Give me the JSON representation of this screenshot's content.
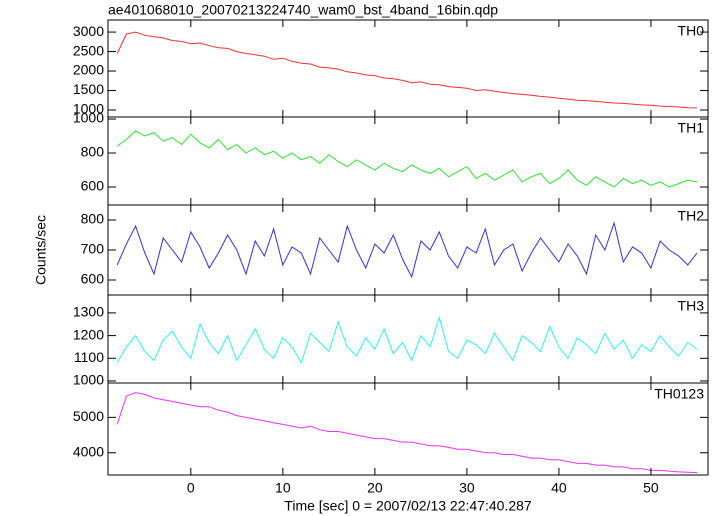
{
  "chart_data": {
    "type": "line",
    "title": "ae401068010_20070213224740_wam0_bst_4band_16bin.qdp",
    "xlabel": "Time [sec] 0 = 2007/02/13 22:47:40.287",
    "ylabel": "Counts/sec",
    "x": [
      -8,
      -7,
      -6,
      -5,
      -4,
      -3,
      -2,
      -1,
      0,
      1,
      2,
      3,
      4,
      5,
      6,
      7,
      8,
      9,
      10,
      11,
      12,
      13,
      14,
      15,
      16,
      17,
      18,
      19,
      20,
      21,
      22,
      23,
      24,
      25,
      26,
      27,
      28,
      29,
      30,
      31,
      32,
      33,
      34,
      35,
      36,
      37,
      38,
      39,
      40,
      41,
      42,
      43,
      44,
      45,
      46,
      47,
      48,
      49,
      50,
      51,
      52,
      53,
      54,
      55
    ],
    "xlim": [
      -9,
      56.2
    ],
    "xticks": [
      0,
      10,
      20,
      30,
      40,
      50
    ],
    "panels": [
      {
        "name": "TH0",
        "color": "#f03030",
        "ylim": [
          820,
          3310
        ],
        "yticks": [
          1000,
          1500,
          2000,
          2500,
          3000
        ],
        "values": [
          2450,
          2950,
          3000,
          2920,
          2880,
          2850,
          2780,
          2760,
          2700,
          2720,
          2650,
          2600,
          2580,
          2500,
          2450,
          2420,
          2380,
          2300,
          2330,
          2250,
          2200,
          2180,
          2100,
          2080,
          2050,
          1980,
          1950,
          1900,
          1880,
          1820,
          1800,
          1760,
          1700,
          1720,
          1660,
          1650,
          1600,
          1580,
          1560,
          1500,
          1520,
          1480,
          1450,
          1420,
          1400,
          1380,
          1350,
          1330,
          1300,
          1280,
          1250,
          1240,
          1220,
          1200,
          1180,
          1170,
          1150,
          1130,
          1120,
          1100,
          1090,
          1080,
          1060,
          1050
        ]
      },
      {
        "name": "TH1",
        "color": "#30e030",
        "ylim": [
          494,
          1012
        ],
        "yticks": [
          600,
          800,
          1000
        ],
        "values": [
          840,
          880,
          930,
          900,
          920,
          870,
          890,
          850,
          910,
          860,
          830,
          880,
          820,
          850,
          800,
          830,
          790,
          810,
          770,
          800,
          760,
          780,
          740,
          790,
          750,
          720,
          760,
          730,
          700,
          740,
          710,
          690,
          730,
          700,
          680,
          710,
          660,
          690,
          720,
          650,
          680,
          640,
          670,
          700,
          630,
          660,
          680,
          620,
          650,
          700,
          640,
          610,
          660,
          630,
          600,
          650,
          620,
          640,
          610,
          630,
          600,
          620,
          640,
          630
        ]
      },
      {
        "name": "TH2",
        "color": "#3030e0",
        "ylim": [
          550,
          850
        ],
        "yticks": [
          600,
          700,
          800
        ],
        "values": [
          650,
          720,
          780,
          690,
          620,
          740,
          700,
          660,
          760,
          710,
          640,
          690,
          750,
          700,
          620,
          730,
          680,
          770,
          650,
          710,
          690,
          620,
          740,
          700,
          660,
          780,
          700,
          640,
          720,
          690,
          750,
          670,
          610,
          730,
          700,
          760,
          680,
          640,
          710,
          690,
          770,
          650,
          700,
          720,
          630,
          690,
          740,
          700,
          660,
          720,
          680,
          620,
          750,
          700,
          790,
          660,
          710,
          690,
          640,
          730,
          700,
          680,
          650,
          690
        ]
      },
      {
        "name": "TH3",
        "color": "#30f0f0",
        "ylim": [
          991,
          1379
        ],
        "yticks": [
          1000,
          1100,
          1200,
          1300
        ],
        "values": [
          1080,
          1150,
          1200,
          1130,
          1090,
          1180,
          1220,
          1150,
          1100,
          1250,
          1170,
          1120,
          1200,
          1090,
          1160,
          1230,
          1140,
          1100,
          1190,
          1150,
          1080,
          1210,
          1170,
          1130,
          1260,
          1150,
          1110,
          1190,
          1140,
          1230,
          1120,
          1170,
          1090,
          1200,
          1150,
          1280,
          1130,
          1100,
          1180,
          1160,
          1120,
          1210,
          1150,
          1090,
          1200,
          1170,
          1130,
          1240,
          1150,
          1100,
          1190,
          1160,
          1120,
          1210,
          1140,
          1180,
          1100,
          1160,
          1130,
          1200,
          1150,
          1110,
          1170,
          1140
        ]
      },
      {
        "name": "TH0123",
        "color": "#f030f0",
        "ylim": [
          3371,
          5971
        ],
        "yticks": [
          4000,
          5000
        ],
        "values": [
          4800,
          5600,
          5700,
          5650,
          5550,
          5500,
          5450,
          5400,
          5350,
          5300,
          5300,
          5200,
          5150,
          5050,
          5000,
          4950,
          4900,
          4850,
          4800,
          4750,
          4700,
          4750,
          4650,
          4600,
          4600,
          4550,
          4500,
          4450,
          4400,
          4400,
          4350,
          4300,
          4300,
          4250,
          4200,
          4200,
          4150,
          4100,
          4100,
          4050,
          4000,
          4000,
          3950,
          3950,
          3900,
          3850,
          3850,
          3800,
          3800,
          3750,
          3700,
          3700,
          3650,
          3650,
          3600,
          3600,
          3550,
          3550,
          3500,
          3500,
          3480,
          3460,
          3450,
          3440
        ]
      }
    ]
  }
}
